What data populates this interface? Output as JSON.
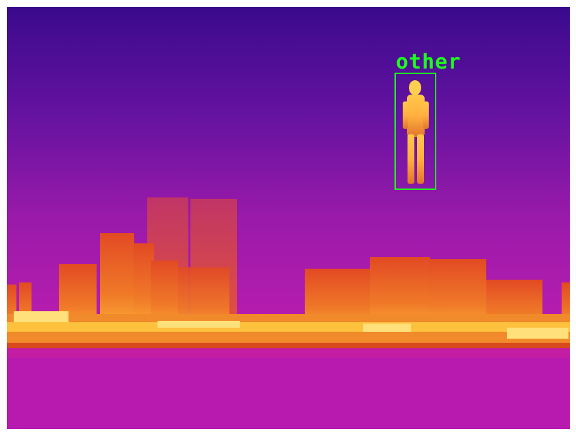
{
  "image": {
    "kind": "thermal-camera-frame",
    "palette": "ironbow"
  },
  "detections": [
    {
      "label": "other",
      "box_color": "#1cff1c"
    }
  ],
  "colors": {
    "sky_top": "#3a0a8c",
    "sky_mid": "#8a1aa8",
    "sky_low": "#b21db0",
    "water": "#b81ab0",
    "warm": "#e0501e",
    "hot": "#ffd84a"
  }
}
